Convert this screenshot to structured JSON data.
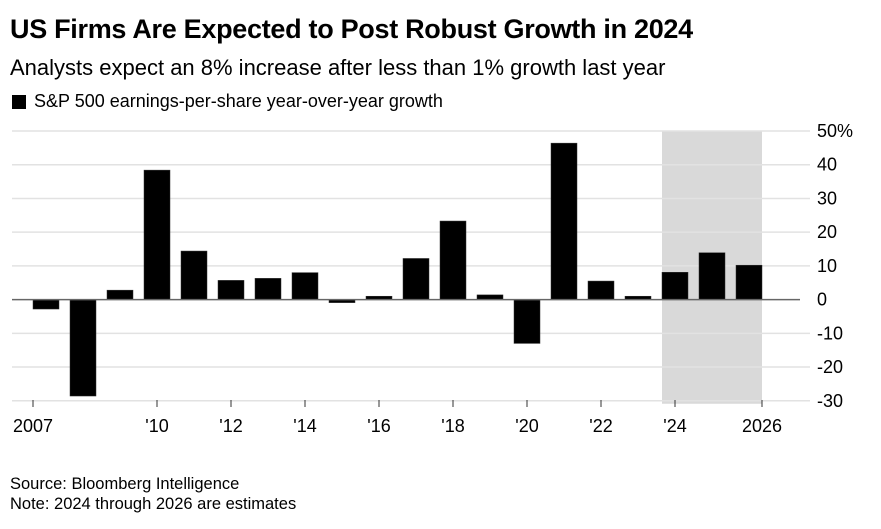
{
  "chart_data": {
    "type": "bar",
    "title": "US Firms Are Expected to Post Robust Growth in 2024",
    "subtitle": "Analysts expect an 8% increase after less than 1% growth last year",
    "legend": [
      {
        "name": "S&P 500 earnings-per-share year-over-year growth",
        "color": "#000000"
      }
    ],
    "legend_placement": "top-left",
    "categories": [
      "2007",
      "2008",
      "2009",
      "2010",
      "2011",
      "2012",
      "2013",
      "2014",
      "2015",
      "2016",
      "2017",
      "2018",
      "2019",
      "2020",
      "2021",
      "2022",
      "2023",
      "2024",
      "2025",
      "2026"
    ],
    "series": [
      {
        "name": "S&P 500 earnings-per-share year-over-year growth",
        "values": [
          -2.8,
          -28.6,
          2.8,
          38.4,
          14.4,
          5.7,
          6.3,
          8.0,
          -0.9,
          1.0,
          12.2,
          23.3,
          1.4,
          -13.0,
          46.4,
          5.5,
          1.0,
          8.1,
          13.9,
          10.2
        ]
      }
    ],
    "estimate_range": [
      "2024",
      "2026"
    ],
    "xlabel": "",
    "ylabel": "",
    "ylim": [
      -30,
      50
    ],
    "yticks": [
      50,
      40,
      30,
      20,
      10,
      0,
      -10,
      -20,
      -30
    ],
    "ytick_labels": [
      "50%",
      "40",
      "30",
      "20",
      "10",
      "0",
      "-10",
      "-20",
      "-30"
    ],
    "xticks": [
      {
        "year": "2007",
        "label": "2007",
        "anchor": "start"
      },
      {
        "year": "2010",
        "label": "'10"
      },
      {
        "year": "2012",
        "label": "'12"
      },
      {
        "year": "2014",
        "label": "'14"
      },
      {
        "year": "2016",
        "label": "'16"
      },
      {
        "year": "2018",
        "label": "'18"
      },
      {
        "year": "2020",
        "label": "'20"
      },
      {
        "year": "2022",
        "label": "'22"
      },
      {
        "year": "2024",
        "label": "'24"
      },
      {
        "year": "2026",
        "label": "2026",
        "anchor": "end"
      }
    ],
    "grid": true,
    "yaxis_side": "right",
    "colors": {
      "bar": "#000000",
      "grid": "#e2e2e2",
      "zero_line": "#666666",
      "estimate_shade": "#d9d9d9"
    }
  },
  "footer": {
    "source": "Source: Bloomberg Intelligence",
    "note": "Note: 2024 through 2026 are estimates"
  }
}
